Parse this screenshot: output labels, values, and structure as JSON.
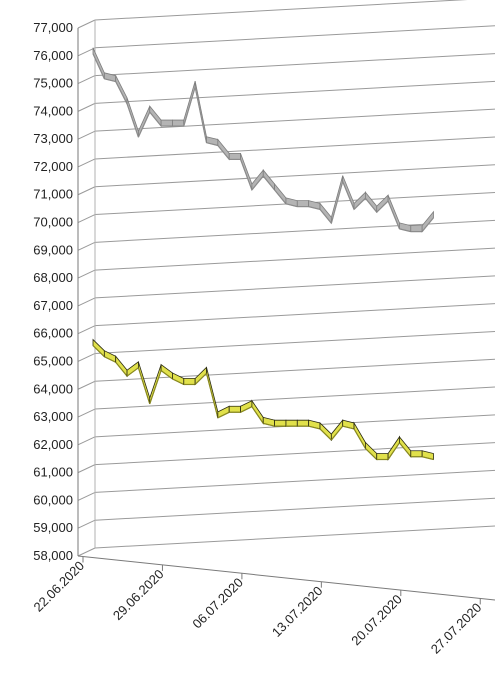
{
  "chart_data": {
    "type": "line",
    "style": "3d",
    "title": "",
    "xlabel": "",
    "ylabel": "",
    "ylim": [
      58000,
      77000
    ],
    "y_ticks": [
      "58,000",
      "59,000",
      "60,000",
      "61,000",
      "62,000",
      "63,000",
      "64,000",
      "65,000",
      "66,000",
      "67,000",
      "68,000",
      "69,000",
      "70,000",
      "71,000",
      "72,000",
      "73,000",
      "74,000",
      "75,000",
      "76,000",
      "77,000"
    ],
    "x_tick_labels": [
      "22.06.2020",
      "29.06.2020",
      "06.07.2020",
      "13.07.2020",
      "20.07.2020",
      "27.07.2020"
    ],
    "grid": true,
    "legend": "none",
    "x": [
      "22.06.2020",
      "23.06.2020",
      "24.06.2020",
      "25.06.2020",
      "26.06.2020",
      "27.06.2020",
      "28.06.2020",
      "29.06.2020",
      "30.06.2020",
      "01.07.2020",
      "02.07.2020",
      "03.07.2020",
      "04.07.2020",
      "05.07.2020",
      "06.07.2020",
      "07.07.2020",
      "08.07.2020",
      "09.07.2020",
      "10.07.2020",
      "11.07.2020",
      "12.07.2020",
      "13.07.2020",
      "14.07.2020",
      "15.07.2020",
      "16.07.2020",
      "17.07.2020",
      "18.07.2020",
      "19.07.2020",
      "20.07.2020",
      "21.07.2020",
      "22.07.2020"
    ],
    "series": [
      {
        "color": "#b4b4b4",
        "values": [
          76000,
          75100,
          75000,
          74200,
          73000,
          73900,
          73400,
          73400,
          73400,
          74800,
          72800,
          72700,
          72200,
          72200,
          71100,
          71600,
          71100,
          70600,
          70500,
          70500,
          70400,
          69900,
          71400,
          70400,
          70800,
          70300,
          70700,
          69700,
          69600,
          69600,
          70100
        ]
      },
      {
        "color": "#e1e14b",
        "values": [
          65500,
          65100,
          64900,
          64400,
          64700,
          63400,
          64600,
          64300,
          64100,
          64100,
          64500,
          62900,
          63100,
          63100,
          63300,
          62700,
          62600,
          62600,
          62600,
          62600,
          62500,
          62100,
          62600,
          62500,
          61800,
          61400,
          61400,
          62000,
          61500,
          61500,
          61400
        ]
      }
    ]
  }
}
